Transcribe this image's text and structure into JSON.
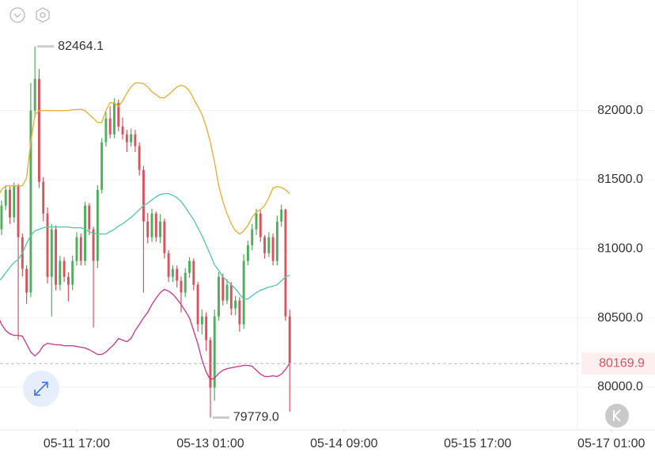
{
  "chart_data": {
    "type": "candlestick",
    "x": [
      "05-10 22:00",
      "05-10 23:00",
      "05-11 00:00",
      "05-11 01:00",
      "05-11 02:00",
      "05-11 03:00",
      "05-11 04:00",
      "05-11 05:00",
      "05-11 06:00",
      "05-11 07:00",
      "05-11 08:00",
      "05-11 09:00",
      "05-11 10:00",
      "05-11 11:00",
      "05-11 12:00",
      "05-11 13:00",
      "05-11 14:00",
      "05-11 15:00",
      "05-11 16:00",
      "05-11 17:00",
      "05-11 18:00",
      "05-11 19:00",
      "05-11 20:00",
      "05-11 21:00",
      "05-11 22:00",
      "05-11 23:00",
      "05-12 00:00",
      "05-12 01:00",
      "05-12 02:00",
      "05-12 03:00",
      "05-12 04:00",
      "05-12 05:00",
      "05-12 06:00",
      "05-12 07:00",
      "05-12 08:00",
      "05-12 09:00",
      "05-12 10:00",
      "05-12 11:00",
      "05-12 12:00",
      "05-12 13:00",
      "05-12 14:00",
      "05-12 15:00",
      "05-12 16:00",
      "05-12 17:00",
      "05-12 18:00",
      "05-12 19:00",
      "05-12 20:00",
      "05-12 21:00",
      "05-12 22:00",
      "05-12 23:00",
      "05-13 00:00",
      "05-13 01:00",
      "05-13 02:00",
      "05-13 03:00",
      "05-13 04:00",
      "05-13 05:00",
      "05-13 06:00",
      "05-13 07:00",
      "05-13 08:00",
      "05-13 09:00",
      "05-13 10:00",
      "05-13 11:00",
      "05-13 12:00",
      "05-13 13:00",
      "05-13 14:00",
      "05-13 15:00",
      "05-13 16:00",
      "05-13 17:00",
      "05-13 18:00",
      "05-13 19:00",
      "05-13 20:00"
    ],
    "open": [
      80912,
      81141,
      81313,
      81427,
      81227,
      81456,
      81084,
      80855,
      80683,
      82000,
      82229,
      81485,
      81255,
      80797,
      81141,
      80740,
      80912,
      80797,
      80740,
      80912,
      81084,
      80912,
      81313,
      81141,
      80912,
      81427,
      81771,
      81943,
      81828,
      82057,
      81885,
      81828,
      81771,
      81828,
      81742,
      81570,
      81198,
      81084,
      81255,
      81084,
      81198,
      80969,
      80797,
      80855,
      80769,
      80683,
      80826,
      80912,
      80740,
      80454,
      80511,
      80339,
      79996,
      80511,
      80797,
      80626,
      80740,
      80568,
      80626,
      80454,
      80912,
      81026,
      81141,
      81255,
      81084,
      80969,
      81084,
      80912,
      81198,
      81284,
      80511
    ],
    "high": [
      81190,
      81350,
      81460,
      81450,
      81480,
      81470,
      81110,
      80880,
      82200,
      82464.1,
      82300,
      81520,
      81300,
      81180,
      81170,
      80950,
      80940,
      80830,
      80950,
      81120,
      81110,
      81340,
      81330,
      81160,
      81460,
      81800,
      81990,
      82030,
      82090,
      82080,
      81950,
      81860,
      81870,
      81860,
      81770,
      81600,
      81260,
      81290,
      81270,
      81250,
      81220,
      80990,
      80880,
      80880,
      80800,
      80860,
      80940,
      80930,
      80760,
      80560,
      80540,
      80360,
      80560,
      80830,
      80820,
      80780,
      80760,
      80660,
      80650,
      80960,
      81060,
      81180,
      81290,
      81280,
      81100,
      81120,
      81110,
      81240,
      81320,
      81290,
      80560
    ],
    "low": [
      80870,
      81100,
      81280,
      81180,
      81190,
      80340,
      80800,
      80600,
      80650,
      81950,
      81440,
      81200,
      80750,
      80510,
      80700,
      80700,
      80760,
      80620,
      80700,
      80880,
      80880,
      80880,
      81100,
      80430,
      80860,
      81400,
      81740,
      81800,
      81800,
      81850,
      81790,
      81700,
      81740,
      81700,
      81530,
      80683,
      81040,
      81050,
      81050,
      81040,
      80930,
      80760,
      80760,
      80720,
      80540,
      80650,
      80790,
      80700,
      80400,
      80380,
      80260,
      79779,
      79900,
      80480,
      80590,
      80600,
      80520,
      80520,
      80400,
      80420,
      80880,
      80990,
      81100,
      81050,
      80930,
      80940,
      80880,
      80880,
      81160,
      80480,
      79820
    ],
    "close": [
      81141,
      81313,
      81427,
      81227,
      81456,
      81084,
      80855,
      80683,
      82000,
      82229,
      81485,
      81255,
      80797,
      81141,
      80740,
      80912,
      80797,
      80740,
      80912,
      81084,
      80912,
      81313,
      81141,
      80912,
      81427,
      81771,
      81943,
      81828,
      82057,
      81885,
      81828,
      81771,
      81828,
      81742,
      81570,
      81198,
      81084,
      81255,
      81084,
      81198,
      80969,
      80797,
      80855,
      80769,
      80683,
      80826,
      80912,
      80740,
      80454,
      80511,
      80339,
      79996,
      80511,
      80797,
      80626,
      80740,
      80568,
      80626,
      80454,
      80912,
      81026,
      81141,
      81255,
      81084,
      80969,
      81084,
      80912,
      81198,
      81284,
      80511,
      80169.9
    ],
    "up_color": "#4fae5c",
    "down_color": "#d9535d",
    "lines": [
      {
        "color": "#e3b33c",
        "values": [
          81370,
          81427,
          81456,
          81456,
          81456,
          81456,
          81456,
          81513,
          81771,
          81971,
          82000,
          82000,
          82000,
          82000,
          82000,
          82000,
          82000,
          82000,
          82006,
          82006,
          82011,
          82000,
          81971,
          81943,
          81914,
          81914,
          82000,
          82057,
          82057,
          82029,
          82069,
          82126,
          82172,
          82200,
          82200,
          82195,
          82172,
          82137,
          82115,
          82092,
          82092,
          82115,
          82143,
          82172,
          82183,
          82172,
          82143,
          82086,
          82029,
          81971,
          81885,
          81771,
          81628,
          81456,
          81341,
          81255,
          81181,
          81130,
          81107,
          81130,
          81170,
          81227,
          81267,
          81284,
          81313,
          81370,
          81439,
          81450,
          81444,
          81427,
          81399
        ]
      },
      {
        "color": "#5cc7ad",
        "values": [
          80757,
          80786,
          80826,
          80866,
          80900,
          80923,
          80969,
          81038,
          81095,
          81130,
          81141,
          81152,
          81158,
          81158,
          81158,
          81158,
          81158,
          81158,
          81152,
          81152,
          81152,
          81141,
          81124,
          81112,
          81107,
          81107,
          81107,
          81124,
          81141,
          81164,
          81181,
          81204,
          81227,
          81255,
          81284,
          81313,
          81330,
          81353,
          81376,
          81393,
          81399,
          81399,
          81387,
          81370,
          81341,
          81301,
          81255,
          81210,
          81152,
          81095,
          81026,
          80958,
          80883,
          80843,
          80797,
          80769,
          80740,
          80711,
          80671,
          80637,
          80637,
          80660,
          80683,
          80700,
          80711,
          80723,
          80729,
          80740,
          80769,
          80797,
          80809
        ]
      },
      {
        "color": "#c4418f",
        "values": [
          80522,
          80454,
          80408,
          80385,
          80374,
          80374,
          80368,
          80311,
          80253,
          80225,
          80253,
          80299,
          80316,
          80311,
          80305,
          80305,
          80299,
          80299,
          80299,
          80293,
          80288,
          80282,
          80270,
          80253,
          80236,
          80236,
          80253,
          80282,
          80311,
          80351,
          80339,
          80328,
          80351,
          80408,
          80454,
          80500,
          80540,
          80597,
          80643,
          80683,
          80706,
          80694,
          80671,
          80637,
          80597,
          80551,
          80500,
          80408,
          80311,
          80196,
          80110,
          80053,
          80064,
          80099,
          80122,
          80133,
          80139,
          80145,
          80150,
          80156,
          80156,
          80150,
          80122,
          80093,
          80076,
          80076,
          80081,
          80076,
          80093,
          80127,
          80173
        ]
      }
    ],
    "xlim": [
      "05-10 22:38",
      "05-16 16:54"
    ],
    "xticks": [
      "05-11 17:00",
      "05-13 01:00",
      "05-14 09:00",
      "05-15 17:00",
      "05-17 01:00"
    ],
    "ylim": [
      79690,
      82800
    ],
    "yticks": [
      {
        "value": 80000,
        "label": "80000.0"
      },
      {
        "value": 80500,
        "label": "80500.0"
      },
      {
        "value": 81000,
        "label": "81000.0"
      },
      {
        "value": 81500,
        "label": "81500.0"
      },
      {
        "value": 82000,
        "label": "82000.0"
      }
    ],
    "grid": true,
    "max_marker": 82464.1,
    "min_marker": {
      "value": 79779,
      "label": "79779.0"
    },
    "last_price": 80169.9
  }
}
